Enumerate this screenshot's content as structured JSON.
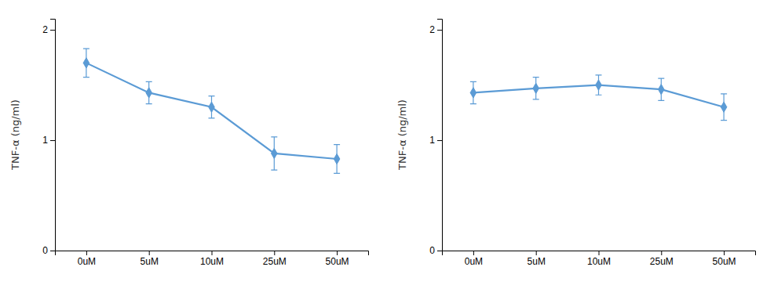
{
  "chart_data": [
    {
      "type": "line",
      "categories": [
        "0uM",
        "5uM",
        "10uM",
        "25uM",
        "50uM"
      ],
      "values": [
        1.7,
        1.43,
        1.3,
        0.88,
        0.83
      ],
      "errors": [
        0.13,
        0.1,
        0.1,
        0.15,
        0.13
      ],
      "ylabel": "TNF-α (ng/ml)",
      "ylim": [
        0,
        2.1
      ],
      "yticks": [
        0,
        1,
        2
      ],
      "color": "#5b9bd5",
      "marker": "diamond",
      "line_style": "solid",
      "grid": false
    },
    {
      "type": "line",
      "categories": [
        "0uM",
        "5uM",
        "10uM",
        "25uM",
        "50uM"
      ],
      "values": [
        1.43,
        1.47,
        1.5,
        1.46,
        1.3
      ],
      "errors": [
        0.1,
        0.1,
        0.09,
        0.1,
        0.12
      ],
      "ylabel": "TNF-α (ng/ml)",
      "ylim": [
        0,
        2.1
      ],
      "yticks": [
        0,
        1,
        2
      ],
      "color": "#5b9bd5",
      "marker": "diamond",
      "line_style": "solid",
      "grid": false
    }
  ]
}
